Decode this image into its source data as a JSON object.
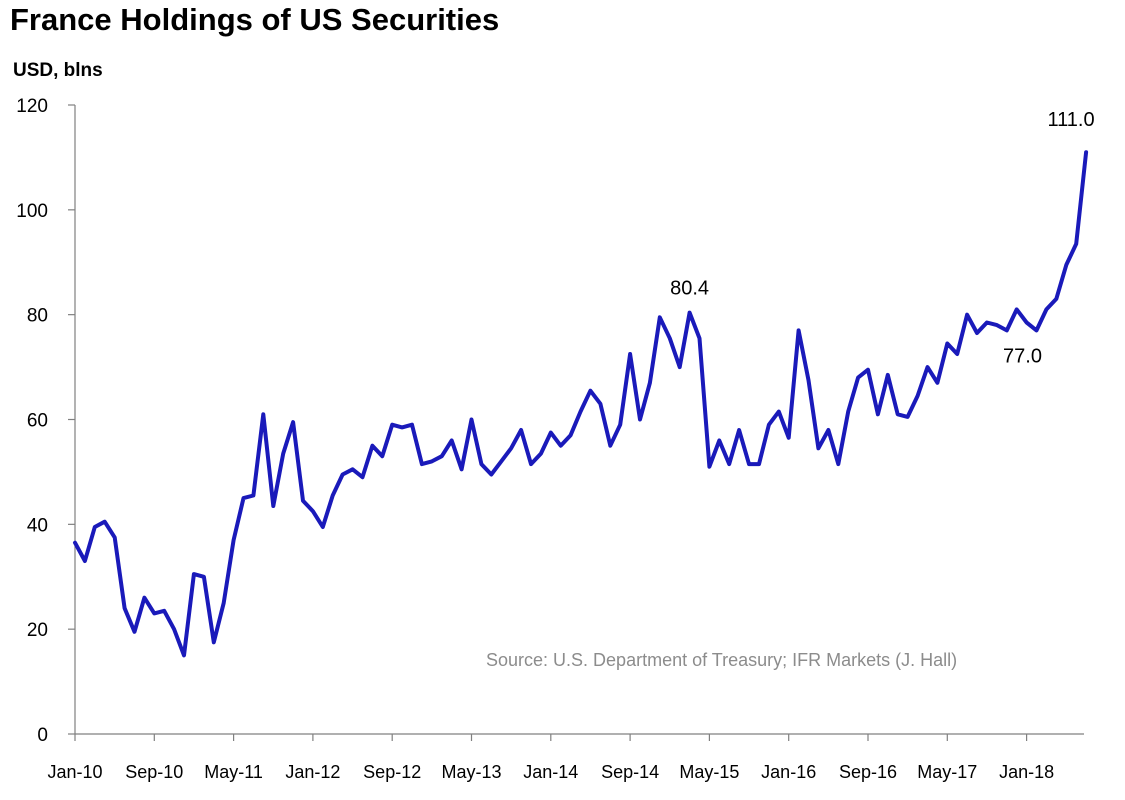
{
  "chart_data": {
    "type": "line",
    "title": "France Holdings of US Securities",
    "ylabel": "USD, blns",
    "xlabel": "",
    "ylim": [
      0,
      120
    ],
    "yticks": [
      0,
      20,
      40,
      60,
      80,
      100,
      120
    ],
    "x_tick_labels": [
      "Jan-10",
      "Sep-10",
      "May-11",
      "Jan-12",
      "Sep-12",
      "May-13",
      "Jan-14",
      "Sep-14",
      "May-15",
      "Jan-16",
      "Sep-16",
      "May-17",
      "Jan-18"
    ],
    "x_tick_months": [
      0,
      8,
      16,
      24,
      32,
      40,
      48,
      56,
      64,
      72,
      80,
      88,
      96
    ],
    "grid": false,
    "line_color": "#1a1aba",
    "series": [
      {
        "name": "France Holdings of US Securities",
        "start": "Jan-10",
        "values": [
          36.5,
          33.0,
          39.5,
          40.5,
          37.5,
          24.0,
          19.5,
          26.0,
          23.0,
          23.5,
          20.0,
          15.0,
          30.5,
          30.0,
          17.5,
          25.0,
          37.0,
          45.0,
          45.5,
          61.0,
          43.5,
          53.5,
          59.5,
          44.5,
          42.5,
          39.5,
          45.5,
          49.5,
          50.5,
          49.0,
          55.0,
          53.0,
          59.0,
          58.5,
          59.0,
          51.5,
          52.0,
          53.0,
          56.0,
          50.5,
          60.0,
          51.5,
          49.5,
          52.0,
          54.5,
          58.0,
          51.5,
          53.5,
          57.5,
          55.0,
          57.0,
          61.5,
          65.5,
          63.0,
          55.0,
          59.0,
          72.5,
          60.0,
          67.0,
          79.5,
          75.5,
          70.0,
          80.4,
          75.5,
          51.0,
          56.0,
          51.5,
          58.0,
          51.5,
          51.5,
          59.0,
          61.5,
          56.5,
          77.0,
          67.5,
          54.5,
          58.0,
          51.5,
          61.5,
          68.0,
          69.5,
          61.0,
          68.5,
          61.0,
          60.5,
          64.5,
          70.0,
          67.0,
          74.5,
          72.5,
          80.0,
          76.5,
          78.5,
          78.0,
          77.0,
          81.0,
          78.5,
          77.0,
          81.0,
          83.0,
          89.5,
          93.5,
          111.0
        ]
      }
    ],
    "annotations": [
      {
        "text": "111.0",
        "month": 102,
        "value": 111.0
      },
      {
        "text": "80.4",
        "month": 62,
        "value": 80.4
      },
      {
        "text": "77.0",
        "month": 97,
        "value": 77.0
      }
    ],
    "source_note": "Source: U.S. Department of Treasury; IFR Markets (J. Hall)"
  }
}
